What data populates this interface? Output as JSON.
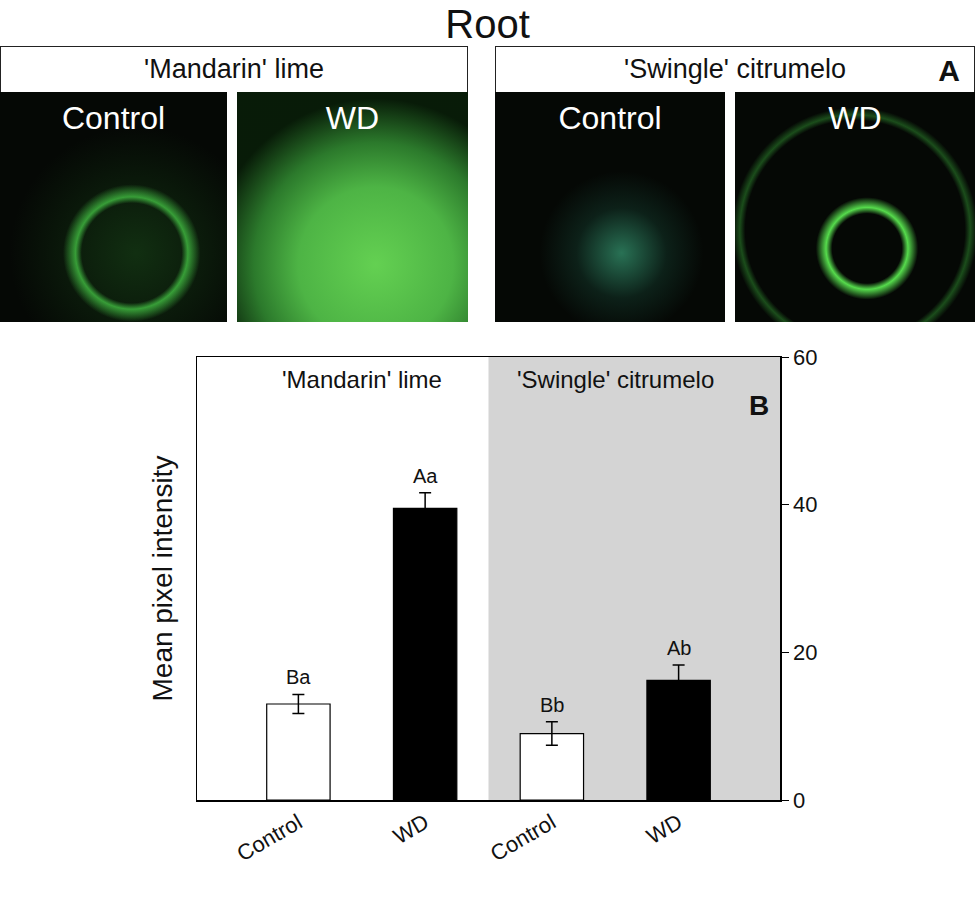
{
  "title": "Root",
  "panel_a": {
    "label": "A",
    "groups": [
      {
        "name": "'Mandarin' lime",
        "images": [
          "Control",
          "WD"
        ]
      },
      {
        "name": "'Swingle' citrumelo",
        "images": [
          "Control",
          "WD"
        ]
      }
    ]
  },
  "chart_data": {
    "type": "bar",
    "panel_label": "B",
    "y_label": "Mean pixel intensity",
    "groups": [
      {
        "name": "'Mandarin' lime",
        "color": "#ffffff"
      },
      {
        "name": "'Swingle' citrumelo",
        "color": "#d4d4d4"
      }
    ],
    "categories": [
      "Control",
      "WD",
      "Control",
      "WD"
    ],
    "values": [
      13,
      39.5,
      9,
      16.2
    ],
    "errors": [
      1.3,
      2.1,
      1.6,
      2.1
    ],
    "significance": [
      "Ba",
      "Aa",
      "Bb",
      "Ab"
    ],
    "colors": [
      "#ffffff",
      "#000000",
      "#ffffff",
      "#000000"
    ],
    "ylim": [
      0,
      60
    ],
    "yticks": [
      0,
      20,
      40,
      60
    ],
    "grid": false
  }
}
